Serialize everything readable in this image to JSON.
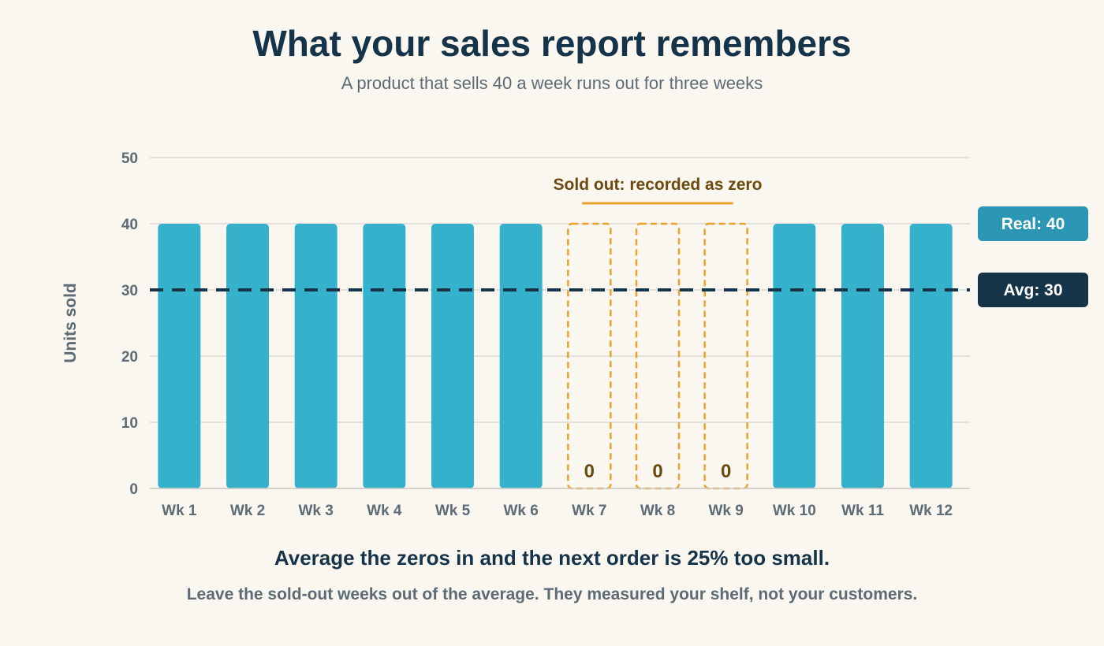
{
  "title": "What your sales report remembers",
  "subtitle": "A product that sells 40 a week runs out for three weeks",
  "headline": "Average the zeros in and the next order is 25% too small.",
  "footnote": "Leave the sold-out weeks out of the average. They measured your shelf, not your customers.",
  "chart_data": {
    "type": "bar",
    "title": "What your sales report remembers",
    "subtitle": "A product that sells 40 a week runs out for three weeks",
    "xlabel": "",
    "ylabel": "Units sold",
    "ylim": [
      0,
      50
    ],
    "yticks": [
      0,
      10,
      20,
      30,
      40,
      50
    ],
    "grid": true,
    "categories": [
      "Wk 1",
      "Wk 2",
      "Wk 3",
      "Wk 4",
      "Wk 5",
      "Wk 6",
      "Wk 7",
      "Wk 8",
      "Wk 9",
      "Wk 10",
      "Wk 11",
      "Wk 12"
    ],
    "values": [
      40,
      40,
      40,
      40,
      40,
      40,
      0,
      0,
      0,
      40,
      40,
      40
    ],
    "sold_out": [
      false,
      false,
      false,
      false,
      false,
      false,
      true,
      true,
      true,
      false,
      false,
      false
    ],
    "real_demand": 40,
    "reference_lines": [
      {
        "label": "Real: 40",
        "value": 40,
        "style": "tag-only"
      },
      {
        "label": "Avg: 30",
        "value": 30,
        "style": "dashed"
      }
    ],
    "annotation": {
      "label": "Sold out: recorded as zero",
      "from": "Wk 7",
      "to": "Wk 9"
    },
    "colors": {
      "bar": "#35b1cc",
      "sold_out": "#e9a22d",
      "sold_out_text": "#6b4a0e",
      "avg_line": "#163449",
      "real_tag": "#2c97b4",
      "avg_tag": "#163449",
      "grid": "#dcd8d2",
      "tick_text": "#5d6b75"
    }
  }
}
